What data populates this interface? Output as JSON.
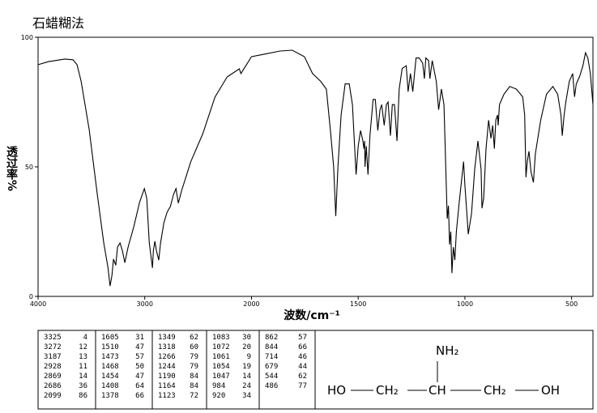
{
  "chart_data": {
    "type": "line",
    "title": "石蜡糊法",
    "x_label": "波数/cm⁻¹",
    "y_label": "透过率%",
    "xlim": [
      4000,
      400
    ],
    "x_scale_break": 2000,
    "ylim": [
      0,
      100
    ],
    "xticks": [
      4000,
      3000,
      2000,
      1500,
      1000,
      500
    ],
    "yticks": [
      0,
      50,
      100
    ],
    "series": [
      {
        "color": "#000000",
        "x": [
          4000,
          3901,
          3749,
          3673,
          3635,
          3597,
          3521,
          3445,
          3384,
          3346,
          3325,
          3308,
          3293,
          3272,
          3255,
          3232,
          3209,
          3187,
          3156,
          3103,
          3049,
          3004,
          2981,
          2958,
          2928,
          2920,
          2905,
          2890,
          2869,
          2852,
          2821,
          2791,
          2760,
          2730,
          2707,
          2686,
          2654,
          2570,
          2456,
          2342,
          2228,
          2114,
          2099,
          2000,
          1943,
          1866,
          1809,
          1752,
          1714,
          1676,
          1649,
          1630,
          1615,
          1605,
          1595,
          1580,
          1561,
          1542,
          1527,
          1518,
          1510,
          1500,
          1489,
          1478,
          1473,
          1470,
          1468,
          1462,
          1454,
          1445,
          1430,
          1420,
          1408,
          1398,
          1390,
          1378,
          1368,
          1360,
          1349,
          1340,
          1330,
          1318,
          1308,
          1294,
          1275,
          1266,
          1255,
          1244,
          1229,
          1214,
          1198,
          1190,
          1183,
          1170,
          1164,
          1153,
          1134,
          1123,
          1110,
          1098,
          1083,
          1077,
          1072,
          1066,
          1061,
          1057,
          1054,
          1050,
          1047,
          1040,
          1027,
          1006,
          1000,
          984,
          969,
          954,
          939,
          924,
          920,
          912,
          901,
          889,
          878,
          870,
          862,
          855,
          847,
          844,
          838,
          817,
          790,
          759,
          729,
          720,
          714,
          708,
          700,
          690,
          679,
          670,
          645,
          618,
          588,
          565,
          550,
          544,
          535,
          527,
          511,
          495,
          486,
          478,
          462,
          447,
          435,
          424,
          412,
          400
        ],
        "values": [
          89.4,
          90.6,
          91.6,
          91.3,
          89.4,
          83.1,
          64.4,
          39.4,
          20.6,
          11.3,
          4,
          8.1,
          14.4,
          12,
          19.1,
          20.6,
          17.5,
          13,
          19.1,
          26.9,
          36.3,
          41.6,
          37.8,
          20.6,
          11,
          17.5,
          21.3,
          17.5,
          14,
          20.6,
          28.4,
          32.5,
          34.7,
          39.4,
          41.6,
          36,
          40.9,
          51.9,
          62.8,
          76.9,
          84.7,
          87.8,
          86,
          92.5,
          93.4,
          94.7,
          95,
          92.5,
          86,
          83,
          80,
          64,
          50,
          31,
          50,
          70,
          82,
          82,
          74,
          60,
          47,
          58,
          64,
          60,
          57,
          60,
          50,
          58,
          47,
          62,
          76,
          76,
          64,
          72,
          74,
          66,
          74,
          75,
          62,
          74,
          74,
          60,
          80,
          88,
          89,
          79,
          86,
          79,
          92,
          92,
          90,
          84,
          92,
          91,
          84,
          91,
          83,
          72,
          80,
          74,
          30,
          35,
          20,
          25,
          9,
          15,
          19,
          16,
          14,
          25,
          36,
          52,
          43,
          24,
          32,
          49,
          60,
          49,
          34,
          38,
          57,
          68,
          61,
          66,
          57,
          68,
          70,
          66,
          74,
          78,
          81,
          80,
          77,
          70,
          46,
          52,
          56,
          48,
          44,
          55,
          68,
          78,
          81,
          78,
          70,
          62,
          70,
          75,
          83,
          86,
          77,
          82,
          85,
          89,
          94,
          92,
          86,
          74
        ]
      }
    ]
  },
  "peak_table": [
    [
      [
        "3325",
        "4"
      ],
      [
        "3272",
        "12"
      ],
      [
        "3187",
        "13"
      ],
      [
        "2928",
        "11"
      ],
      [
        "2869",
        "14"
      ],
      [
        "2686",
        "36"
      ],
      [
        "2099",
        "86"
      ]
    ],
    [
      [
        "1605",
        "31"
      ],
      [
        "1510",
        "47"
      ],
      [
        "1473",
        "57"
      ],
      [
        "1468",
        "50"
      ],
      [
        "1454",
        "47"
      ],
      [
        "1408",
        "64"
      ],
      [
        "1378",
        "66"
      ]
    ],
    [
      [
        "1349",
        "62"
      ],
      [
        "1318",
        "60"
      ],
      [
        "1266",
        "79"
      ],
      [
        "1244",
        "79"
      ],
      [
        "1190",
        "84"
      ],
      [
        "1164",
        "84"
      ],
      [
        "1123",
        "72"
      ]
    ],
    [
      [
        "1083",
        "30"
      ],
      [
        "1072",
        "20"
      ],
      [
        "1061",
        "9"
      ],
      [
        "1054",
        "19"
      ],
      [
        "1047",
        "14"
      ],
      [
        "984",
        "24"
      ],
      [
        "920",
        "34"
      ]
    ],
    [
      [
        "862",
        "57"
      ],
      [
        "844",
        "66"
      ],
      [
        "714",
        "46"
      ],
      [
        "679",
        "44"
      ],
      [
        "544",
        "62"
      ],
      [
        "486",
        "77"
      ]
    ]
  ],
  "structure": {
    "top": "NH₂",
    "atoms": [
      "HO",
      "CH₂",
      "CH",
      "CH₂",
      "OH"
    ]
  }
}
